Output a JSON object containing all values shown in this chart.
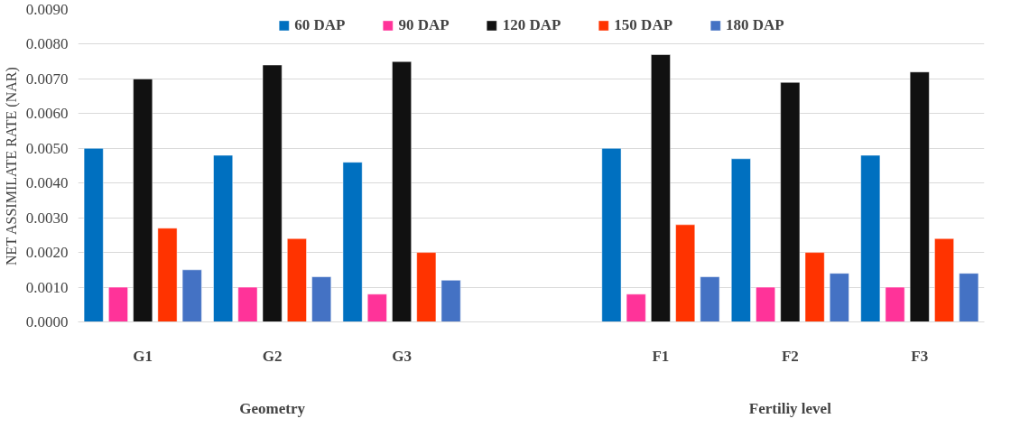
{
  "chart_data": {
    "type": "bar",
    "categories": [
      "G1",
      "G2",
      "G3",
      null,
      "F1",
      "F2",
      "F3"
    ],
    "series": [
      {
        "name": "60 DAP",
        "color": "#0070c0",
        "values": [
          0.005,
          0.0048,
          0.0046,
          null,
          0.005,
          0.0047,
          0.0048
        ]
      },
      {
        "name": "90 DAP",
        "color": "#ff3399",
        "values": [
          0.001,
          0.001,
          0.0008,
          null,
          0.0008,
          0.001,
          0.001
        ]
      },
      {
        "name": "120 DAP",
        "color": "#111111",
        "values": [
          0.007,
          0.0074,
          0.0075,
          null,
          0.0077,
          0.0069,
          0.0072
        ]
      },
      {
        "name": "150 DAP",
        "color": "#ff3300",
        "values": [
          0.0027,
          0.0024,
          0.002,
          null,
          0.0028,
          0.002,
          0.0024
        ]
      },
      {
        "name": "180 DAP",
        "color": "#4472c4",
        "values": [
          0.0015,
          0.0013,
          0.0012,
          null,
          0.0013,
          0.0014,
          0.0014
        ]
      }
    ],
    "ylabel": "NET ASSIMILATE RATE (NAR)",
    "ylim": [
      0,
      0.009
    ],
    "yticks": [
      {
        "value": 0,
        "label": "0.0000"
      },
      {
        "value": 0.001,
        "label": "0.0010"
      },
      {
        "value": 0.002,
        "label": "0.0020"
      },
      {
        "value": 0.003,
        "label": "0.0030"
      },
      {
        "value": 0.004,
        "label": "0.0040"
      },
      {
        "value": 0.005,
        "label": "0.0050"
      },
      {
        "value": 0.006,
        "label": "0.0060"
      },
      {
        "value": 0.007,
        "label": "0.0070"
      },
      {
        "value": 0.008,
        "label": "0.0080"
      },
      {
        "value": 0.009,
        "label": "0.0090"
      }
    ],
    "annotations": [
      "Geometry",
      "Fertiliy level"
    ],
    "grid": "y",
    "legend": "top"
  }
}
